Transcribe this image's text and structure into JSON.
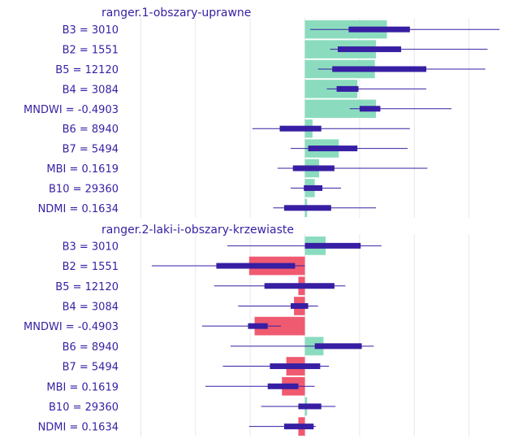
{
  "colors": {
    "positive": "#8bdcbe",
    "negative": "#f05a71",
    "boxplot": "#371ea3",
    "grid": "#e8e8ee",
    "label": "#371ea3",
    "title": "#371ea3"
  },
  "chart_data": [
    {
      "type": "bar",
      "title": "ranger.1-obszary-uprawne",
      "categories": [
        "B3 = 3010",
        "B2 = 1551",
        "B5 = 12120",
        "B4 = 3084",
        "MNDWI = -0.4903",
        "B6 = 8940",
        "B7 = 5494",
        "MBI = 0.1619",
        "B10 = 29360",
        "NDMI = 0.1634"
      ],
      "values": [
        0.075,
        0.065,
        0.064,
        0.048,
        0.065,
        0.007,
        0.031,
        0.013,
        0.009,
        0.002
      ],
      "boxplot": [
        {
          "min": 0.005,
          "q1": 0.04,
          "q3": 0.096,
          "max": 0.178
        },
        {
          "min": 0.023,
          "q1": 0.03,
          "q3": 0.088,
          "max": 0.167
        },
        {
          "min": 0.012,
          "q1": 0.025,
          "q3": 0.111,
          "max": 0.165
        },
        {
          "min": 0.02,
          "q1": 0.029,
          "q3": 0.049,
          "max": 0.111
        },
        {
          "min": 0.041,
          "q1": 0.05,
          "q3": 0.069,
          "max": 0.134
        },
        {
          "min": -0.048,
          "q1": -0.023,
          "q3": 0.015,
          "max": 0.096
        },
        {
          "min": -0.013,
          "q1": 0.003,
          "q3": 0.048,
          "max": 0.094
        },
        {
          "min": -0.025,
          "q1": -0.011,
          "q3": 0.027,
          "max": 0.112
        },
        {
          "min": -0.013,
          "q1": -0.001,
          "q3": 0.016,
          "max": 0.033
        },
        {
          "min": -0.029,
          "q1": -0.019,
          "q3": 0.024,
          "max": 0.065
        }
      ],
      "xlim": [
        -0.16,
        0.18
      ],
      "grid": true
    },
    {
      "type": "bar",
      "title": "ranger.2-laki-i-obszary-krzewiaste",
      "categories": [
        "B3 = 3010",
        "B2 = 1551",
        "B5 = 12120",
        "B4 = 3084",
        "MNDWI = -0.4903",
        "B6 = 8940",
        "B7 = 5494",
        "MBI = 0.1619",
        "B10 = 29360",
        "NDMI = 0.1634"
      ],
      "values": [
        0.019,
        -0.051,
        -0.006,
        -0.01,
        -0.046,
        0.017,
        -0.017,
        -0.021,
        0.002,
        -0.006
      ],
      "boxplot": [
        {
          "min": -0.071,
          "q1": 0.0,
          "q3": 0.051,
          "max": 0.07
        },
        {
          "min": -0.14,
          "q1": -0.081,
          "q3": -0.009,
          "max": 0.0
        },
        {
          "min": -0.083,
          "q1": -0.037,
          "q3": 0.027,
          "max": 0.037
        },
        {
          "min": -0.061,
          "q1": -0.013,
          "q3": 0.003,
          "max": 0.012
        },
        {
          "min": -0.094,
          "q1": -0.052,
          "q3": -0.034,
          "max": -0.022
        },
        {
          "min": -0.068,
          "q1": 0.009,
          "q3": 0.052,
          "max": 0.063
        },
        {
          "min": -0.075,
          "q1": -0.032,
          "q3": 0.014,
          "max": 0.022
        },
        {
          "min": -0.091,
          "q1": -0.034,
          "q3": -0.006,
          "max": 0.009
        },
        {
          "min": -0.04,
          "q1": -0.006,
          "q3": 0.015,
          "max": 0.028
        },
        {
          "min": -0.051,
          "q1": -0.019,
          "q3": 0.008,
          "max": 0.01
        }
      ],
      "xlim": [
        -0.16,
        0.18
      ],
      "grid": true
    }
  ]
}
